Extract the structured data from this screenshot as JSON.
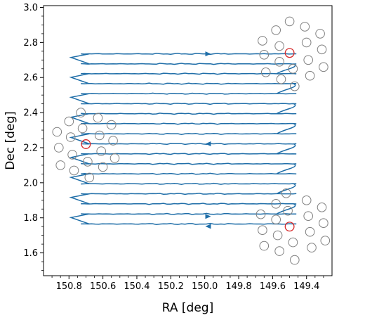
{
  "chart_data": {
    "type": "line",
    "title": "",
    "xlabel": "RA [deg]",
    "ylabel": "Dec [deg]",
    "xlim": [
      150.95,
      149.25
    ],
    "ylim": [
      1.47,
      3.01
    ],
    "x_inverted": true,
    "xticks": [
      150.8,
      150.6,
      150.4,
      150.2,
      150.0,
      149.8,
      149.6,
      149.4
    ],
    "yticks": [
      1.6,
      1.8,
      2.0,
      2.2,
      2.4,
      2.6,
      2.8,
      3.0
    ],
    "xtick_labels": [
      "150.8",
      "150.6",
      "150.4",
      "150.2",
      "150.0",
      "149.8",
      "149.6",
      "149.4"
    ],
    "ytick_labels": [
      "1.6",
      "1.8",
      "2.0",
      "2.2",
      "2.4",
      "2.6",
      "2.8",
      "3.0"
    ],
    "grid": false,
    "colors": {
      "scan": "#1f6ea8",
      "detector_gray": "#808080",
      "detector_red": "#d62728"
    },
    "scan_path": {
      "name": "",
      "ra_min": 149.46,
      "ra_max": 150.73,
      "rows_dec": [
        2.735,
        2.678,
        2.622,
        2.565,
        2.508,
        2.451,
        2.394,
        2.337,
        2.279,
        2.222,
        2.165,
        2.108,
        2.051,
        1.994,
        1.937,
        1.88,
        1.822,
        1.765
      ],
      "arrows": [
        {
          "ra": 149.98,
          "dec": 2.735,
          "direction": "right"
        },
        {
          "ra": 149.98,
          "dec": 2.222,
          "direction": "left"
        },
        {
          "ra": 149.98,
          "dec": 1.808,
          "direction": "right"
        },
        {
          "ra": 149.98,
          "dec": 1.751,
          "direction": "left"
        }
      ]
    },
    "detector_groups": [
      {
        "name": "",
        "circles": [
          {
            "ra": 149.5,
            "dec": 2.92,
            "highlight": false
          },
          {
            "ra": 149.58,
            "dec": 2.87,
            "highlight": false
          },
          {
            "ra": 149.41,
            "dec": 2.89,
            "highlight": false
          },
          {
            "ra": 149.66,
            "dec": 2.81,
            "highlight": false
          },
          {
            "ra": 149.32,
            "dec": 2.85,
            "highlight": false
          },
          {
            "ra": 149.56,
            "dec": 2.78,
            "highlight": false
          },
          {
            "ra": 149.4,
            "dec": 2.8,
            "highlight": false
          },
          {
            "ra": 149.5,
            "dec": 2.74,
            "highlight": true
          },
          {
            "ra": 149.65,
            "dec": 2.73,
            "highlight": false
          },
          {
            "ra": 149.31,
            "dec": 2.76,
            "highlight": false
          },
          {
            "ra": 149.56,
            "dec": 2.69,
            "highlight": false
          },
          {
            "ra": 149.39,
            "dec": 2.7,
            "highlight": false
          },
          {
            "ra": 149.48,
            "dec": 2.65,
            "highlight": false
          },
          {
            "ra": 149.3,
            "dec": 2.66,
            "highlight": false
          },
          {
            "ra": 149.64,
            "dec": 2.63,
            "highlight": false
          },
          {
            "ra": 149.55,
            "dec": 2.59,
            "highlight": false
          },
          {
            "ra": 149.38,
            "dec": 2.61,
            "highlight": false
          },
          {
            "ra": 149.47,
            "dec": 2.55,
            "highlight": false
          }
        ]
      },
      {
        "name": "",
        "circles": [
          {
            "ra": 150.87,
            "dec": 2.29,
            "highlight": false
          },
          {
            "ra": 150.73,
            "dec": 2.4,
            "highlight": false
          },
          {
            "ra": 150.8,
            "dec": 2.35,
            "highlight": false
          },
          {
            "ra": 150.63,
            "dec": 2.37,
            "highlight": false
          },
          {
            "ra": 150.72,
            "dec": 2.31,
            "highlight": false
          },
          {
            "ra": 150.55,
            "dec": 2.33,
            "highlight": false
          },
          {
            "ra": 150.79,
            "dec": 2.26,
            "highlight": false
          },
          {
            "ra": 150.62,
            "dec": 2.27,
            "highlight": false
          },
          {
            "ra": 150.7,
            "dec": 2.22,
            "highlight": true
          },
          {
            "ra": 150.86,
            "dec": 2.2,
            "highlight": false
          },
          {
            "ra": 150.54,
            "dec": 2.24,
            "highlight": false
          },
          {
            "ra": 150.78,
            "dec": 2.16,
            "highlight": false
          },
          {
            "ra": 150.61,
            "dec": 2.18,
            "highlight": false
          },
          {
            "ra": 150.69,
            "dec": 2.12,
            "highlight": false
          },
          {
            "ra": 150.53,
            "dec": 2.14,
            "highlight": false
          },
          {
            "ra": 150.85,
            "dec": 2.1,
            "highlight": false
          },
          {
            "ra": 150.6,
            "dec": 2.09,
            "highlight": false
          },
          {
            "ra": 150.77,
            "dec": 2.07,
            "highlight": false
          },
          {
            "ra": 150.68,
            "dec": 2.03,
            "highlight": false
          }
        ]
      },
      {
        "name": "",
        "circles": [
          {
            "ra": 149.52,
            "dec": 1.94,
            "highlight": false
          },
          {
            "ra": 149.4,
            "dec": 1.9,
            "highlight": false
          },
          {
            "ra": 149.58,
            "dec": 1.88,
            "highlight": false
          },
          {
            "ra": 149.31,
            "dec": 1.86,
            "highlight": false
          },
          {
            "ra": 149.51,
            "dec": 1.84,
            "highlight": false
          },
          {
            "ra": 149.67,
            "dec": 1.82,
            "highlight": false
          },
          {
            "ra": 149.39,
            "dec": 1.81,
            "highlight": false
          },
          {
            "ra": 149.58,
            "dec": 1.79,
            "highlight": false
          },
          {
            "ra": 149.3,
            "dec": 1.77,
            "highlight": false
          },
          {
            "ra": 149.5,
            "dec": 1.75,
            "highlight": true
          },
          {
            "ra": 149.66,
            "dec": 1.73,
            "highlight": false
          },
          {
            "ra": 149.38,
            "dec": 1.72,
            "highlight": false
          },
          {
            "ra": 149.57,
            "dec": 1.7,
            "highlight": false
          },
          {
            "ra": 149.29,
            "dec": 1.67,
            "highlight": false
          },
          {
            "ra": 149.48,
            "dec": 1.66,
            "highlight": false
          },
          {
            "ra": 149.65,
            "dec": 1.64,
            "highlight": false
          },
          {
            "ra": 149.37,
            "dec": 1.63,
            "highlight": false
          },
          {
            "ra": 149.56,
            "dec": 1.61,
            "highlight": false
          },
          {
            "ra": 149.47,
            "dec": 1.56,
            "highlight": false
          }
        ]
      }
    ]
  }
}
